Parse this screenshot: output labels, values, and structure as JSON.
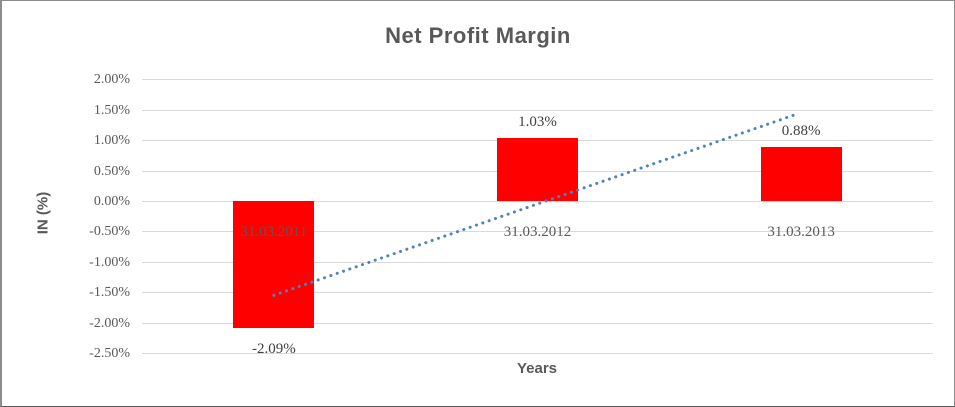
{
  "chart_data": {
    "type": "bar",
    "title": "Net Profit Margin",
    "xlabel": "Years",
    "ylabel": "IN (%)",
    "categories": [
      "31.03.2011",
      "31.03.2012",
      "31.03.2013"
    ],
    "values": [
      -2.09,
      1.03,
      0.88
    ],
    "data_labels": [
      "-2.09%",
      "1.03%",
      "0.88%"
    ],
    "value_unit": "%",
    "ylim": [
      -2.5,
      2.0
    ],
    "ytick_step": 0.5,
    "yticks": [
      {
        "v": 2.0,
        "label": "2.00%"
      },
      {
        "v": 1.5,
        "label": "1.50%"
      },
      {
        "v": 1.0,
        "label": "1.00%"
      },
      {
        "v": 0.5,
        "label": "0.50%"
      },
      {
        "v": 0.0,
        "label": "0.00%"
      },
      {
        "v": -0.5,
        "label": "-0.50%"
      },
      {
        "v": -1.0,
        "label": "-1.00%"
      },
      {
        "v": -1.5,
        "label": "-1.50%"
      },
      {
        "v": -2.0,
        "label": "-2.00%"
      },
      {
        "v": -2.5,
        "label": "-2.50%"
      }
    ],
    "grid": true,
    "legend": "none",
    "colors": {
      "bar": "#ff0000",
      "trendline": "#4f81bd",
      "text": "#595959",
      "gridline": "#d9d9d9"
    },
    "trendline": {
      "style": "dotted",
      "kind": "linear",
      "points": [
        {
          "category_index": 0,
          "value": -1.55
        },
        {
          "category_index": 2,
          "value": 1.43
        }
      ]
    }
  }
}
